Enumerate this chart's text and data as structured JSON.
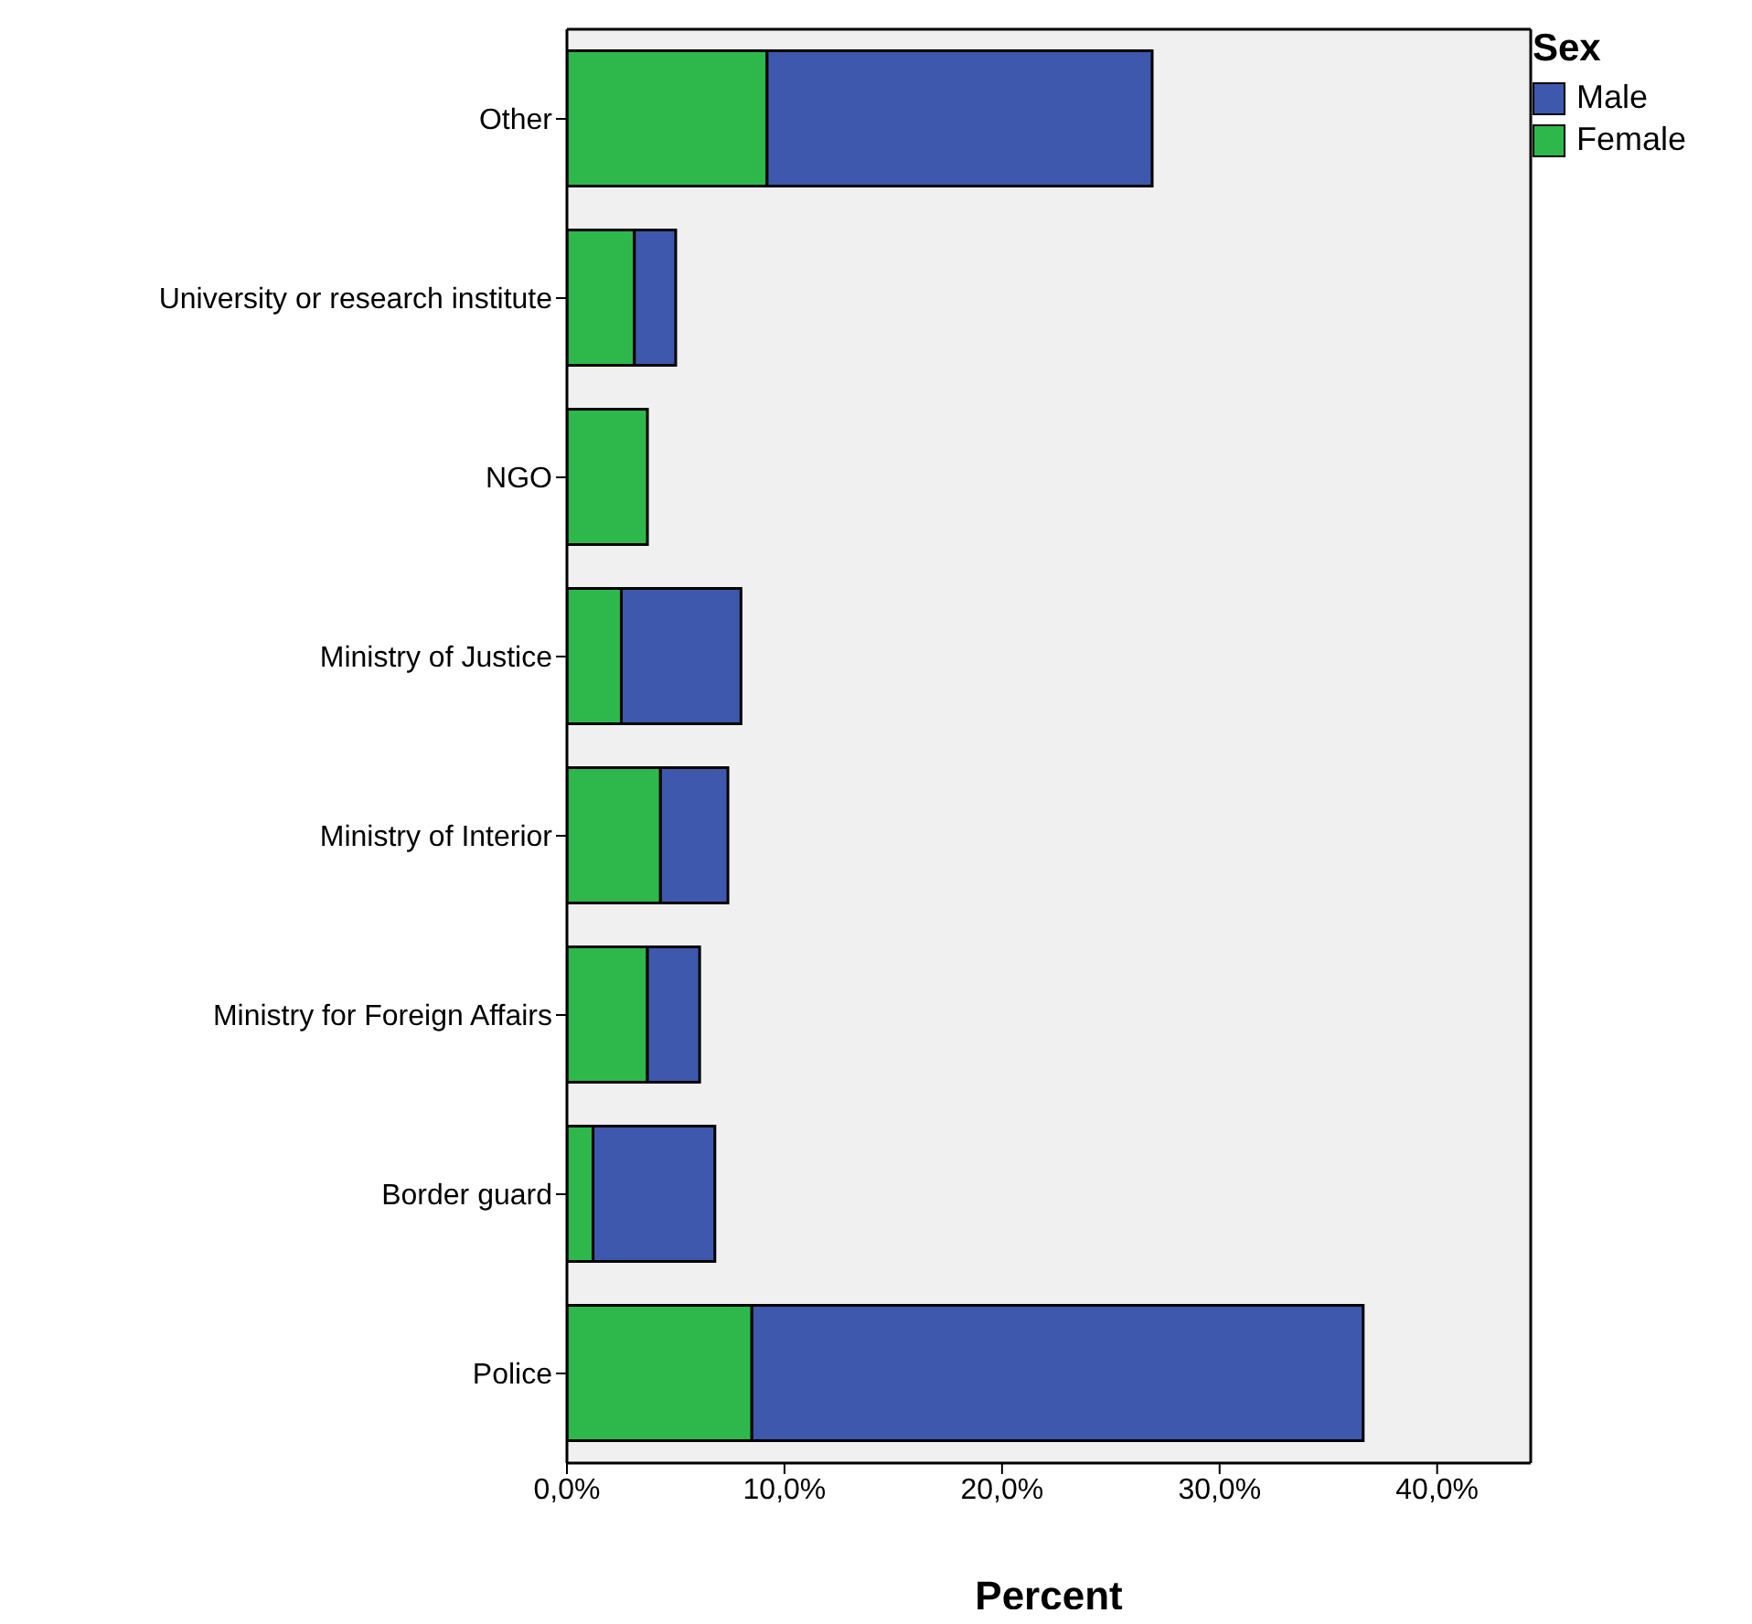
{
  "chart_data": {
    "type": "bar",
    "orientation": "horizontal",
    "stacked": true,
    "xlabel": "Percent",
    "legend_title": "Sex",
    "legend": "top right",
    "categories": [
      "Other",
      "University or research institute",
      "NGO",
      "Ministry of Justice",
      "Ministry of Interior",
      "Ministry for Foreign Affairs",
      "Border guard",
      "Police"
    ],
    "series": [
      {
        "name": "Female",
        "color": "#2eb84b",
        "values": [
          9.2,
          3.1,
          3.7,
          2.5,
          4.3,
          3.7,
          1.2,
          8.5
        ]
      },
      {
        "name": "Male",
        "color": "#3d58ac",
        "values": [
          17.7,
          1.9,
          0,
          5.5,
          3.1,
          2.4,
          5.6,
          28.1
        ]
      }
    ],
    "xlim": [
      0,
      44.3
    ],
    "xticks": [
      {
        "value": 0,
        "label": "0,0%"
      },
      {
        "value": 10,
        "label": "10,0%"
      },
      {
        "value": 20,
        "label": "20,0%"
      },
      {
        "value": 30,
        "label": "30,0%"
      },
      {
        "value": 40,
        "label": "40,0%"
      }
    ]
  }
}
